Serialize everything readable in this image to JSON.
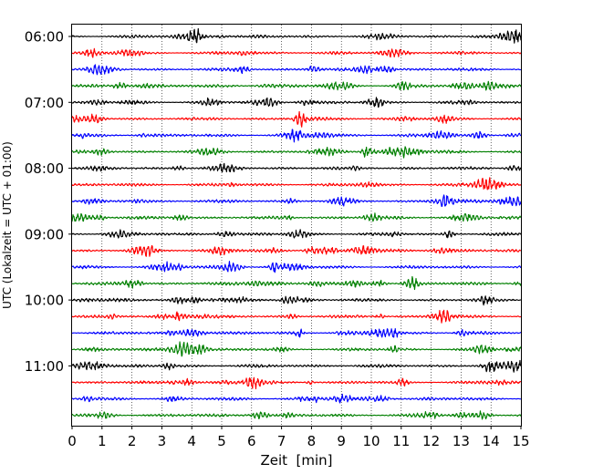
{
  "chart_data": {
    "type": "line",
    "title": "",
    "xlabel": "Zeit  [min]",
    "ylabel": "UTC (Lokalzeit = UTC + 01:00)",
    "xlim": [
      0,
      15
    ],
    "x_ticks": [
      0,
      1,
      2,
      3,
      4,
      5,
      6,
      7,
      8,
      9,
      10,
      11,
      12,
      13,
      14,
      15
    ],
    "y_ticks": [
      {
        "label": "06:00",
        "trace": 0
      },
      {
        "label": "07:00",
        "trace": 4
      },
      {
        "label": "08:00",
        "trace": 8
      },
      {
        "label": "09:00",
        "trace": 12
      },
      {
        "label": "10:00",
        "trace": 16
      },
      {
        "label": "11:00",
        "trace": 20
      }
    ],
    "grid": "vertical dotted lines at each minute",
    "trace_colors": [
      "#000000",
      "#ff0000",
      "#0000ff",
      "#008000"
    ],
    "traces": [
      {
        "start": "06:00",
        "color": "#000000"
      },
      {
        "start": "06:15",
        "color": "#ff0000"
      },
      {
        "start": "06:30",
        "color": "#0000ff"
      },
      {
        "start": "06:45",
        "color": "#008000"
      },
      {
        "start": "07:00",
        "color": "#000000"
      },
      {
        "start": "07:15",
        "color": "#ff0000"
      },
      {
        "start": "07:30",
        "color": "#0000ff"
      },
      {
        "start": "07:45",
        "color": "#008000"
      },
      {
        "start": "08:00",
        "color": "#000000"
      },
      {
        "start": "08:15",
        "color": "#ff0000"
      },
      {
        "start": "08:30",
        "color": "#0000ff"
      },
      {
        "start": "08:45",
        "color": "#008000"
      },
      {
        "start": "09:00",
        "color": "#000000"
      },
      {
        "start": "09:15",
        "color": "#ff0000"
      },
      {
        "start": "09:30",
        "color": "#0000ff"
      },
      {
        "start": "09:45",
        "color": "#008000"
      },
      {
        "start": "10:00",
        "color": "#000000"
      },
      {
        "start": "10:15",
        "color": "#ff0000"
      },
      {
        "start": "10:30",
        "color": "#0000ff"
      },
      {
        "start": "10:45",
        "color": "#008000"
      },
      {
        "start": "11:00",
        "color": "#000000"
      },
      {
        "start": "11:15",
        "color": "#ff0000"
      },
      {
        "start": "11:30",
        "color": "#0000ff"
      },
      {
        "start": "11:45",
        "color": "#008000"
      }
    ]
  }
}
